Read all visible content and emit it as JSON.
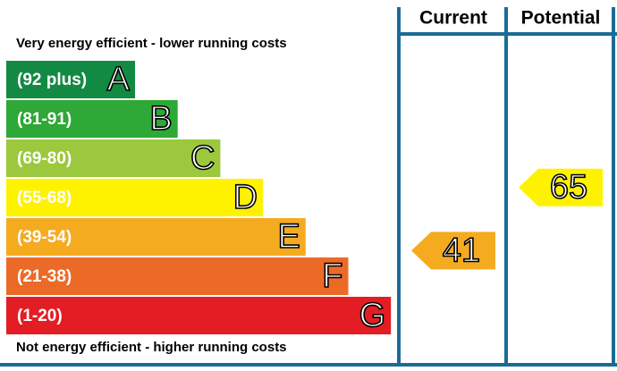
{
  "chart_data": {
    "type": "epc",
    "top_text": "Very energy efficient - lower running costs",
    "bottom_text": "Not energy efficient - higher running costs",
    "bands": [
      {
        "range": "(92 plus)",
        "letter": "A",
        "color": "#138a43"
      },
      {
        "range": "(81-91)",
        "letter": "B",
        "color": "#2ea836"
      },
      {
        "range": "(69-80)",
        "letter": "C",
        "color": "#9cc83d"
      },
      {
        "range": "(55-68)",
        "letter": "D",
        "color": "#fff200"
      },
      {
        "range": "(39-54)",
        "letter": "E",
        "color": "#f5ab20"
      },
      {
        "range": "(21-38)",
        "letter": "F",
        "color": "#ec6a27"
      },
      {
        "range": "(1-20)",
        "letter": "G",
        "color": "#e31d23"
      }
    ],
    "ratings": [
      {
        "name": "Current",
        "value": 41
      },
      {
        "name": "Potential",
        "value": 65
      }
    ]
  }
}
